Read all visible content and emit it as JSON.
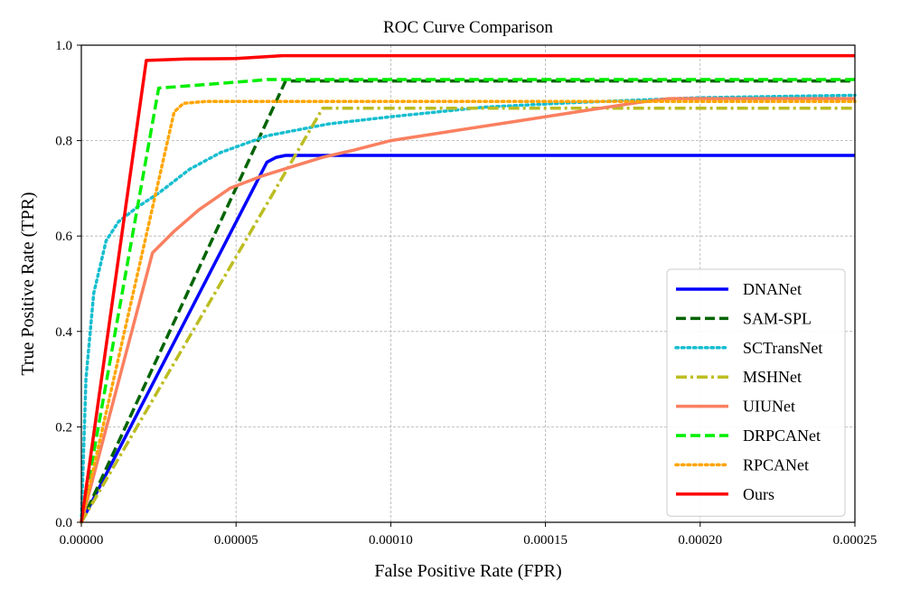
{
  "chart_data": {
    "type": "line",
    "title": "ROC Curve Comparison",
    "xlabel": "False Positive Rate (FPR)",
    "ylabel": "True Positive Rate (TPR)",
    "xlim": [
      0,
      0.00025
    ],
    "ylim": [
      0,
      1.0
    ],
    "grid": true,
    "legend_position": "lower-right",
    "x_ticks": [
      0,
      5e-05,
      0.0001,
      0.00015,
      0.0002,
      0.00025
    ],
    "x_tick_labels": [
      "0.00000",
      "0.00005",
      "0.00010",
      "0.00015",
      "0.00020",
      "0.00025"
    ],
    "y_ticks": [
      0,
      0.2,
      0.4,
      0.6,
      0.8,
      1.0
    ],
    "y_tick_labels": [
      "0.0",
      "0.2",
      "0.4",
      "0.6",
      "0.8",
      "1.0"
    ],
    "series": [
      {
        "name": "DNANet",
        "color": "#0000ff",
        "style": "solid",
        "x": [
          0,
          6e-05,
          6.3e-05,
          6.6e-05,
          0.00025
        ],
        "y": [
          0,
          0.755,
          0.765,
          0.769,
          0.769
        ]
      },
      {
        "name": "SAM-SPL",
        "color": "#006400",
        "style": "dashed",
        "x": [
          0,
          6.6e-05,
          0.00025
        ],
        "y": [
          0,
          0.925,
          0.925
        ]
      },
      {
        "name": "SCTransNet",
        "color": "#17becf",
        "style": "dotted",
        "x": [
          0,
          1.5e-06,
          4e-06,
          8e-06,
          1.2e-05,
          1.8e-05,
          2.5e-05,
          3.5e-05,
          4.5e-05,
          6e-05,
          8e-05,
          0.0001,
          0.00013,
          0.00016,
          0.0002,
          0.00025
        ],
        "y": [
          0,
          0.3,
          0.48,
          0.59,
          0.63,
          0.66,
          0.69,
          0.74,
          0.775,
          0.81,
          0.835,
          0.85,
          0.87,
          0.88,
          0.89,
          0.895
        ]
      },
      {
        "name": "MSHNet",
        "color": "#bcbd22",
        "style": "dashdot",
        "x": [
          0,
          7.8e-05,
          0.00025
        ],
        "y": [
          0,
          0.868,
          0.868
        ]
      },
      {
        "name": "UIUNet",
        "color": "#fa8060",
        "style": "solid",
        "x": [
          0,
          2.3e-05,
          3e-05,
          3.8e-05,
          4.8e-05,
          5.8e-05,
          6.8e-05,
          7.8e-05,
          8.8e-05,
          0.0001,
          0.00012,
          0.00014,
          0.00016,
          0.00018,
          0.00019,
          0.00025
        ],
        "y": [
          0,
          0.565,
          0.61,
          0.655,
          0.7,
          0.725,
          0.745,
          0.765,
          0.78,
          0.8,
          0.82,
          0.84,
          0.86,
          0.88,
          0.888,
          0.888
        ]
      },
      {
        "name": "DRPCANet",
        "color": "#00ee00",
        "style": "dashed",
        "x": [
          0,
          2.5e-05,
          3.5e-05,
          4.5e-05,
          5.5e-05,
          6e-05,
          0.00025
        ],
        "y": [
          0,
          0.91,
          0.915,
          0.92,
          0.925,
          0.928,
          0.928
        ]
      },
      {
        "name": "RPCANet",
        "color": "#ffa500",
        "style": "dotted",
        "x": [
          0,
          3e-05,
          3.3e-05,
          4e-05,
          0.00025
        ],
        "y": [
          0,
          0.86,
          0.878,
          0.882,
          0.882
        ]
      },
      {
        "name": "Ours",
        "color": "#ff0000",
        "style": "solid",
        "x": [
          0,
          2.1e-05,
          3.4e-05,
          5e-05,
          6.5e-05,
          0.00025
        ],
        "y": [
          0,
          0.968,
          0.971,
          0.972,
          0.978,
          0.978
        ]
      }
    ]
  }
}
